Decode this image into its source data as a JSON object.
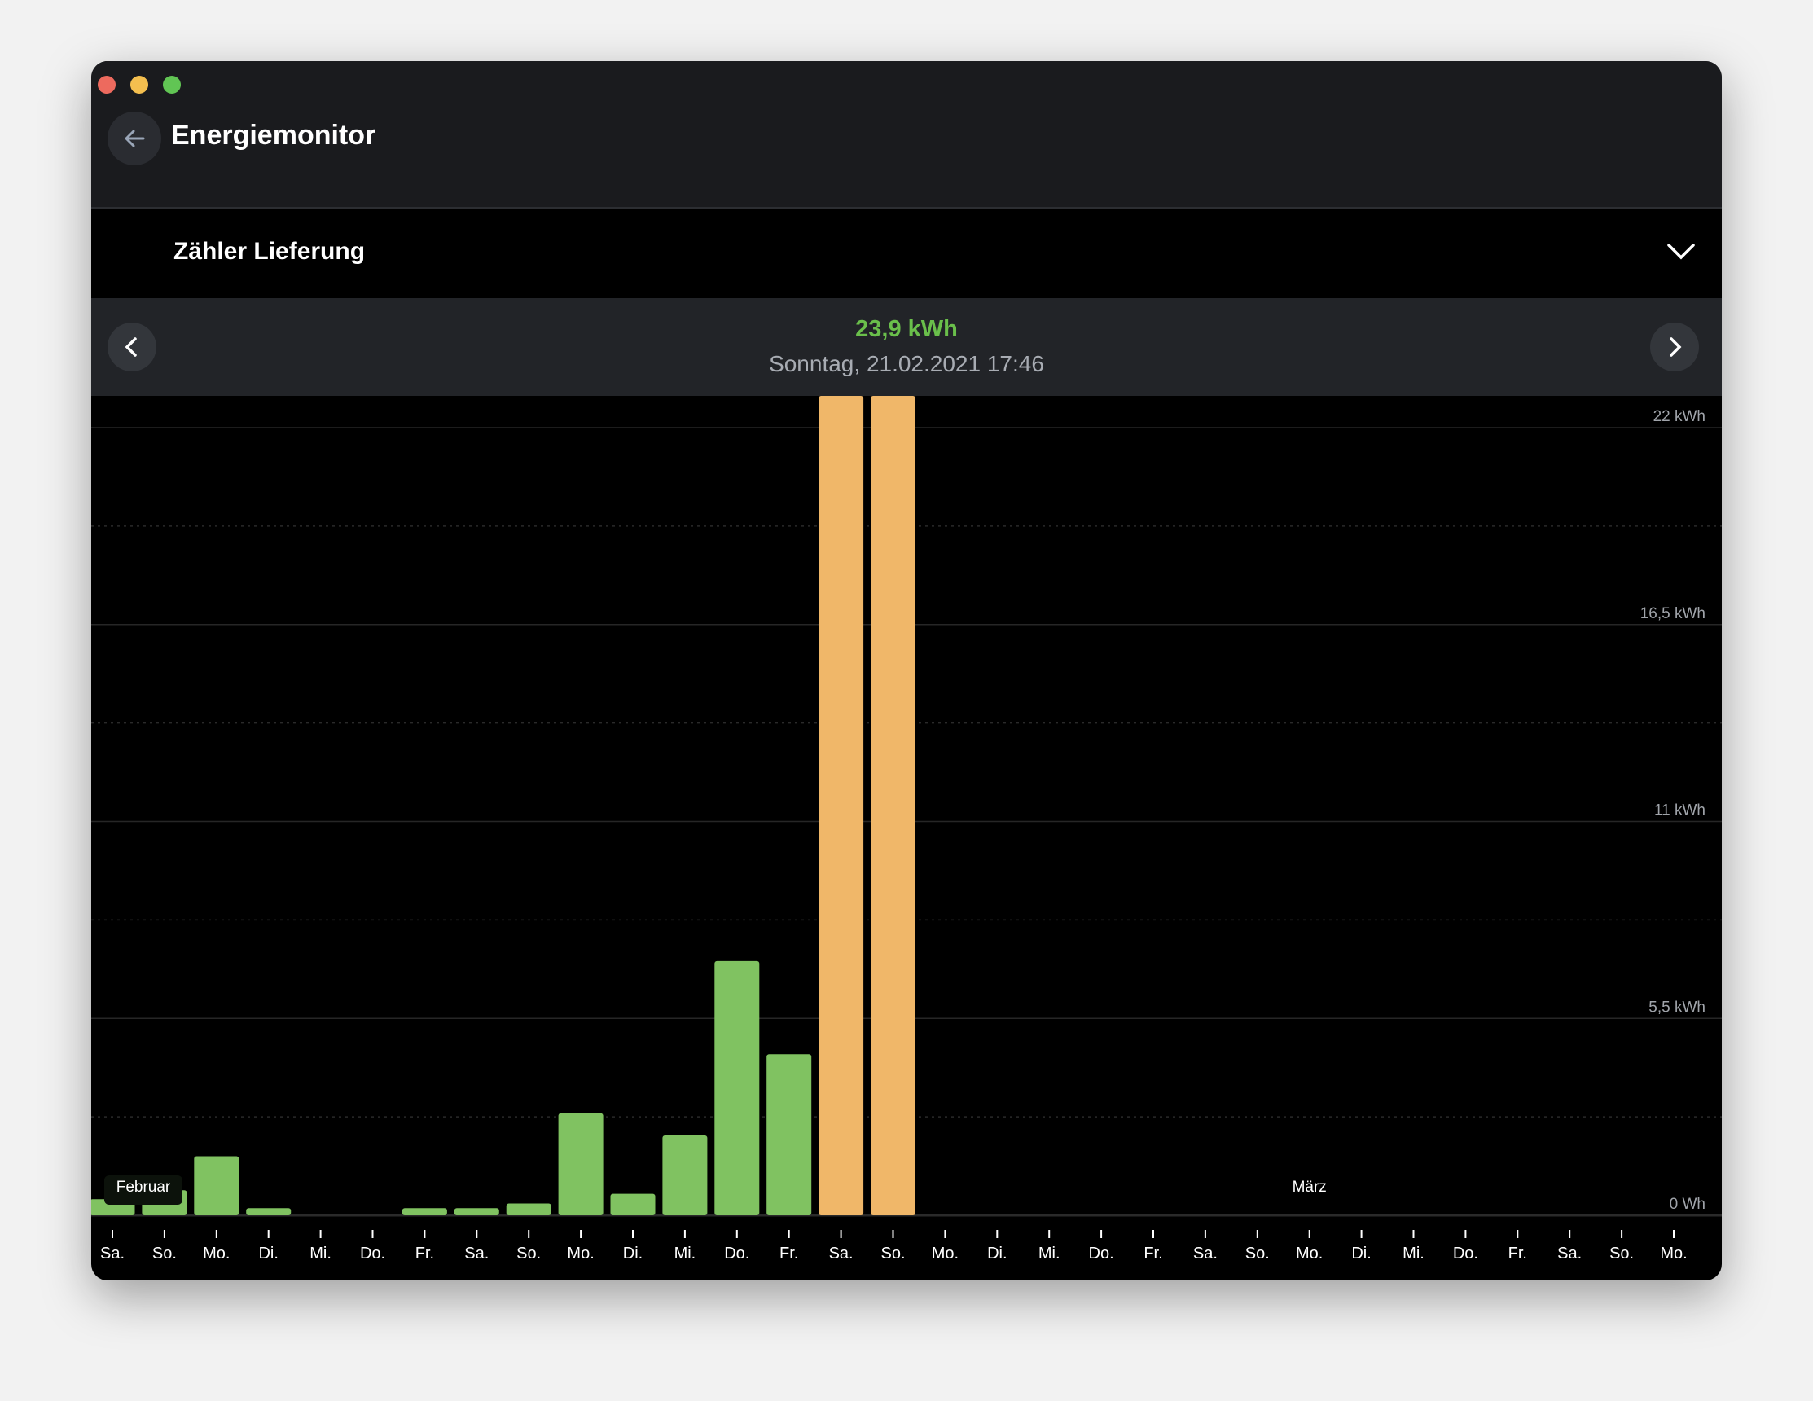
{
  "window": {
    "controls": [
      "close",
      "minimize",
      "maximize"
    ]
  },
  "header": {
    "title": "Energiemonitor",
    "back_icon": "arrow-left-icon"
  },
  "meter": {
    "label": "Zähler Lieferung",
    "dropdown_icon": "chevron-down-icon"
  },
  "selection": {
    "value": "23,9 kWh",
    "date": "Sonntag, 21.02.2021 17:46"
  },
  "colors": {
    "normal": "#80c261",
    "highlight": "#f0b769",
    "value": "#6abf4b"
  },
  "chart_data": {
    "type": "bar",
    "title": "",
    "xlabel": "",
    "ylabel": "",
    "unit": "kWh",
    "ylim": [
      0,
      22
    ],
    "y_ticks": [
      {
        "value": 0,
        "label": "0  Wh"
      },
      {
        "value": 5.5,
        "label": "5,5  kWh"
      },
      {
        "value": 11,
        "label": "11  kWh"
      },
      {
        "value": 16.5,
        "label": "16,5  kWh"
      },
      {
        "value": 22,
        "label": "22  kWh"
      }
    ],
    "categories": [
      "Sa.",
      "So.",
      "Mo.",
      "Di.",
      "Mi.",
      "Do.",
      "Fr.",
      "Sa.",
      "So.",
      "Mo.",
      "Di.",
      "Mi.",
      "Do.",
      "Fr.",
      "Sa.",
      "So.",
      "Mo.",
      "Di.",
      "Mi.",
      "Do.",
      "Fr.",
      "Sa.",
      "So.",
      "Mo.",
      "Di.",
      "Mi.",
      "Do.",
      "Fr.",
      "Sa.",
      "So.",
      "Mo."
    ],
    "values": [
      0.45,
      0.7,
      1.65,
      0.2,
      0,
      0,
      0.2,
      0.2,
      0.33,
      2.85,
      0.6,
      2.23,
      7.1,
      4.5,
      23.5,
      23.9,
      0,
      0,
      0,
      0,
      0,
      0,
      0,
      0,
      0,
      0,
      0,
      0,
      0,
      0,
      0
    ],
    "highlighted": [
      14,
      15
    ],
    "month_labels": [
      {
        "index": 0,
        "label": "Februar"
      },
      {
        "index": 23,
        "label": "März"
      }
    ],
    "grid": true
  }
}
